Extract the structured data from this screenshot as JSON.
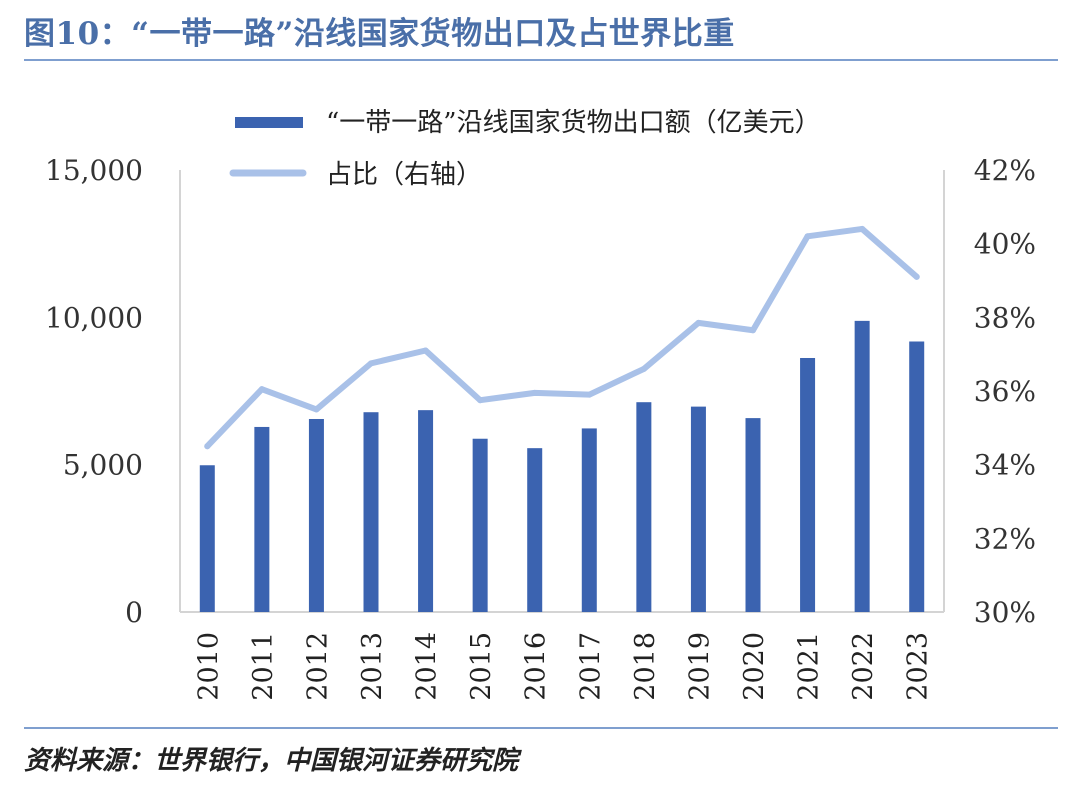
{
  "header": {
    "title": "图10：“一带一路”沿线国家货物出口及占世界比重"
  },
  "footer": {
    "source": "资料来源：世界银行，中国银河证券研究院"
  },
  "colors": {
    "title": "#4a6fa8",
    "bar": "#3b63b0",
    "line": "#a9c1e8",
    "rule": "#7f9fcf"
  },
  "chart_data": {
    "type": "bar",
    "categories": [
      "2010",
      "2011",
      "2012",
      "2013",
      "2014",
      "2015",
      "2016",
      "2017",
      "2018",
      "2019",
      "2020",
      "2021",
      "2022",
      "2023"
    ],
    "series": [
      {
        "name": "“一带一路”沿线国家货物出口额（亿美元）",
        "type": "bar",
        "axis": "left",
        "values": [
          4980,
          6280,
          6550,
          6780,
          6850,
          5880,
          5560,
          6230,
          7120,
          6970,
          6580,
          8620,
          9880,
          9180
        ]
      },
      {
        "name": "占比（右轴）",
        "type": "line",
        "axis": "right",
        "values": [
          34.5,
          36.05,
          35.5,
          36.75,
          37.1,
          35.75,
          35.95,
          35.9,
          36.6,
          37.85,
          37.65,
          40.2,
          40.4,
          39.1
        ]
      }
    ],
    "y_left": {
      "lim": [
        0,
        15000
      ],
      "ticks": [
        0,
        5000,
        10000,
        15000
      ],
      "tick_labels": [
        "0",
        "5,000",
        "10,000",
        "15,000"
      ]
    },
    "y_right": {
      "lim": [
        30,
        42
      ],
      "ticks": [
        30,
        32,
        34,
        36,
        38,
        40,
        42
      ],
      "tick_labels": [
        "30%",
        "32%",
        "34%",
        "36%",
        "38%",
        "40%",
        "42%"
      ]
    },
    "legend": "top-left",
    "grid": false
  }
}
